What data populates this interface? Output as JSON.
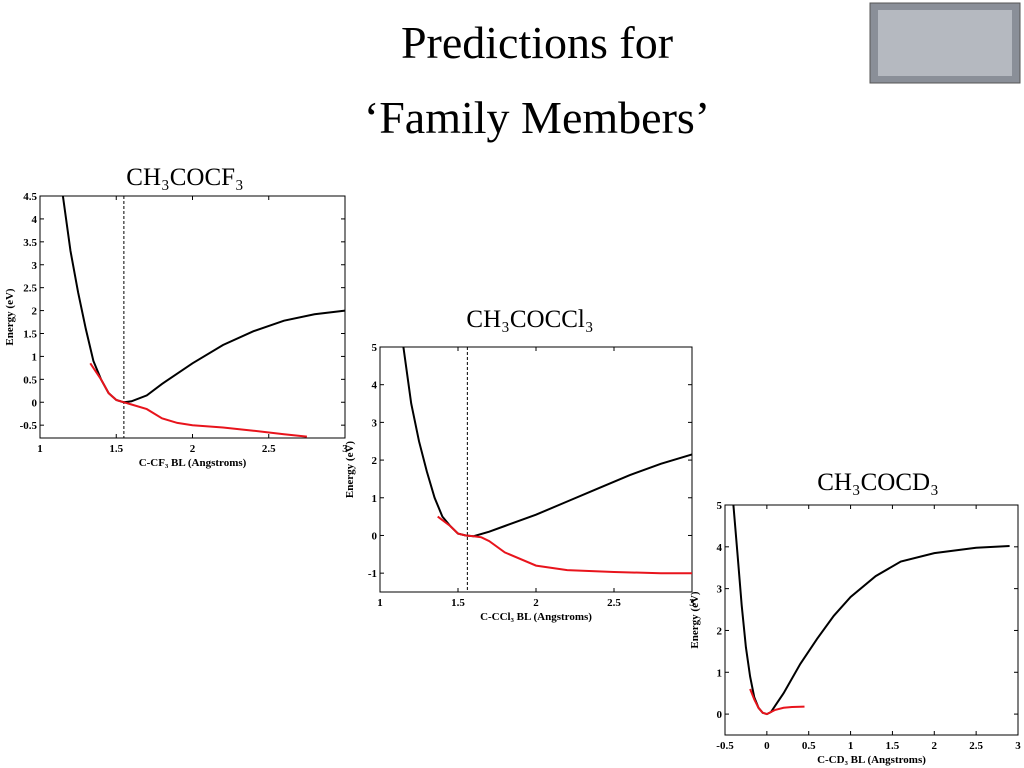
{
  "title": [
    "Predictions for",
    "‘Family Members’"
  ],
  "chart_data": [
    {
      "type": "line",
      "title": "CH₃COCF₃",
      "x_label": "C-CF₃ BL (Angstroms)",
      "y_label": "Energy (eV)",
      "xlim": [
        1,
        3
      ],
      "xticks": [
        1,
        1.5,
        2,
        2.5,
        3
      ],
      "ylim": [
        -0.78,
        4.5
      ],
      "yticks": [
        -0.5,
        0,
        0.5,
        1,
        1.5,
        2,
        2.5,
        3,
        3.5,
        4,
        4.5
      ],
      "vline": 1.55,
      "series": [
        {
          "color": "#000000",
          "x": [
            1.15,
            1.2,
            1.25,
            1.3,
            1.35,
            1.4,
            1.45,
            1.5,
            1.55,
            1.6,
            1.7,
            1.8,
            2.0,
            2.2,
            2.4,
            2.6,
            2.8,
            3.0
          ],
          "values": [
            4.5,
            3.3,
            2.4,
            1.6,
            0.9,
            0.5,
            0.2,
            0.05,
            0,
            0.02,
            0.15,
            0.4,
            0.85,
            1.25,
            1.55,
            1.78,
            1.92,
            2.0
          ]
        },
        {
          "color": "#e8141c",
          "x": [
            1.33,
            1.4,
            1.45,
            1.5,
            1.55,
            1.6,
            1.7,
            1.8,
            1.9,
            2.0,
            2.2,
            2.4,
            2.6,
            2.75
          ],
          "values": [
            0.85,
            0.5,
            0.2,
            0.05,
            0,
            -0.05,
            -0.15,
            -0.35,
            -0.45,
            -0.5,
            -0.55,
            -0.62,
            -0.7,
            -0.75
          ]
        }
      ]
    },
    {
      "type": "line",
      "title": "CH₃COCCl₃",
      "x_label": "C-CCl₃ BL (Angstroms)",
      "y_label": "Energy (eV)",
      "xlim": [
        1,
        3
      ],
      "xticks": [
        1,
        1.5,
        2,
        2.5,
        3
      ],
      "ylim": [
        -1.5,
        5
      ],
      "yticks": [
        -1,
        0,
        1,
        2,
        3,
        4,
        5
      ],
      "vline": 1.56,
      "series": [
        {
          "color": "#000000",
          "x": [
            1.15,
            1.2,
            1.25,
            1.3,
            1.35,
            1.4,
            1.45,
            1.5,
            1.55,
            1.6,
            1.7,
            1.8,
            2.0,
            2.2,
            2.4,
            2.6,
            2.8,
            3.0
          ],
          "values": [
            5,
            3.5,
            2.5,
            1.7,
            1.0,
            0.5,
            0.25,
            0.05,
            0,
            -0.02,
            0.1,
            0.25,
            0.55,
            0.9,
            1.25,
            1.6,
            1.9,
            2.15
          ]
        },
        {
          "color": "#e8141c",
          "x": [
            1.37,
            1.45,
            1.5,
            1.55,
            1.6,
            1.65,
            1.7,
            1.8,
            2.0,
            2.2,
            2.5,
            2.8,
            3.0
          ],
          "values": [
            0.5,
            0.25,
            0.05,
            0,
            -0.02,
            -0.05,
            -0.15,
            -0.45,
            -0.8,
            -0.92,
            -0.97,
            -1.0,
            -1.0
          ]
        }
      ]
    },
    {
      "type": "line",
      "title": "CH₃COCD₃",
      "x_label": "C-CD₃ BL (Angstroms)",
      "y_label": "Energy (eV)",
      "xlim": [
        -0.5,
        3
      ],
      "xticks": [
        -0.5,
        0,
        0.5,
        1,
        1.5,
        2,
        2.5,
        3
      ],
      "ylim": [
        -0.5,
        5
      ],
      "yticks": [
        0,
        1,
        2,
        3,
        4,
        5
      ],
      "series": [
        {
          "color": "#000000",
          "x": [
            -0.4,
            -0.35,
            -0.3,
            -0.25,
            -0.2,
            -0.15,
            -0.1,
            -0.05,
            0,
            0.05,
            0.1,
            0.2,
            0.4,
            0.6,
            0.8,
            1.0,
            1.3,
            1.6,
            2.0,
            2.5,
            2.9
          ],
          "values": [
            5,
            3.8,
            2.6,
            1.6,
            0.9,
            0.4,
            0.15,
            0.03,
            0,
            0.05,
            0.2,
            0.5,
            1.2,
            1.8,
            2.35,
            2.8,
            3.3,
            3.65,
            3.85,
            3.98,
            4.02
          ]
        },
        {
          "color": "#e8141c",
          "x": [
            -0.2,
            -0.15,
            -0.1,
            -0.05,
            0,
            0.05,
            0.1,
            0.2,
            0.3,
            0.45
          ],
          "values": [
            0.6,
            0.35,
            0.15,
            0.03,
            0,
            0.05,
            0.1,
            0.15,
            0.17,
            0.18
          ]
        }
      ]
    }
  ]
}
